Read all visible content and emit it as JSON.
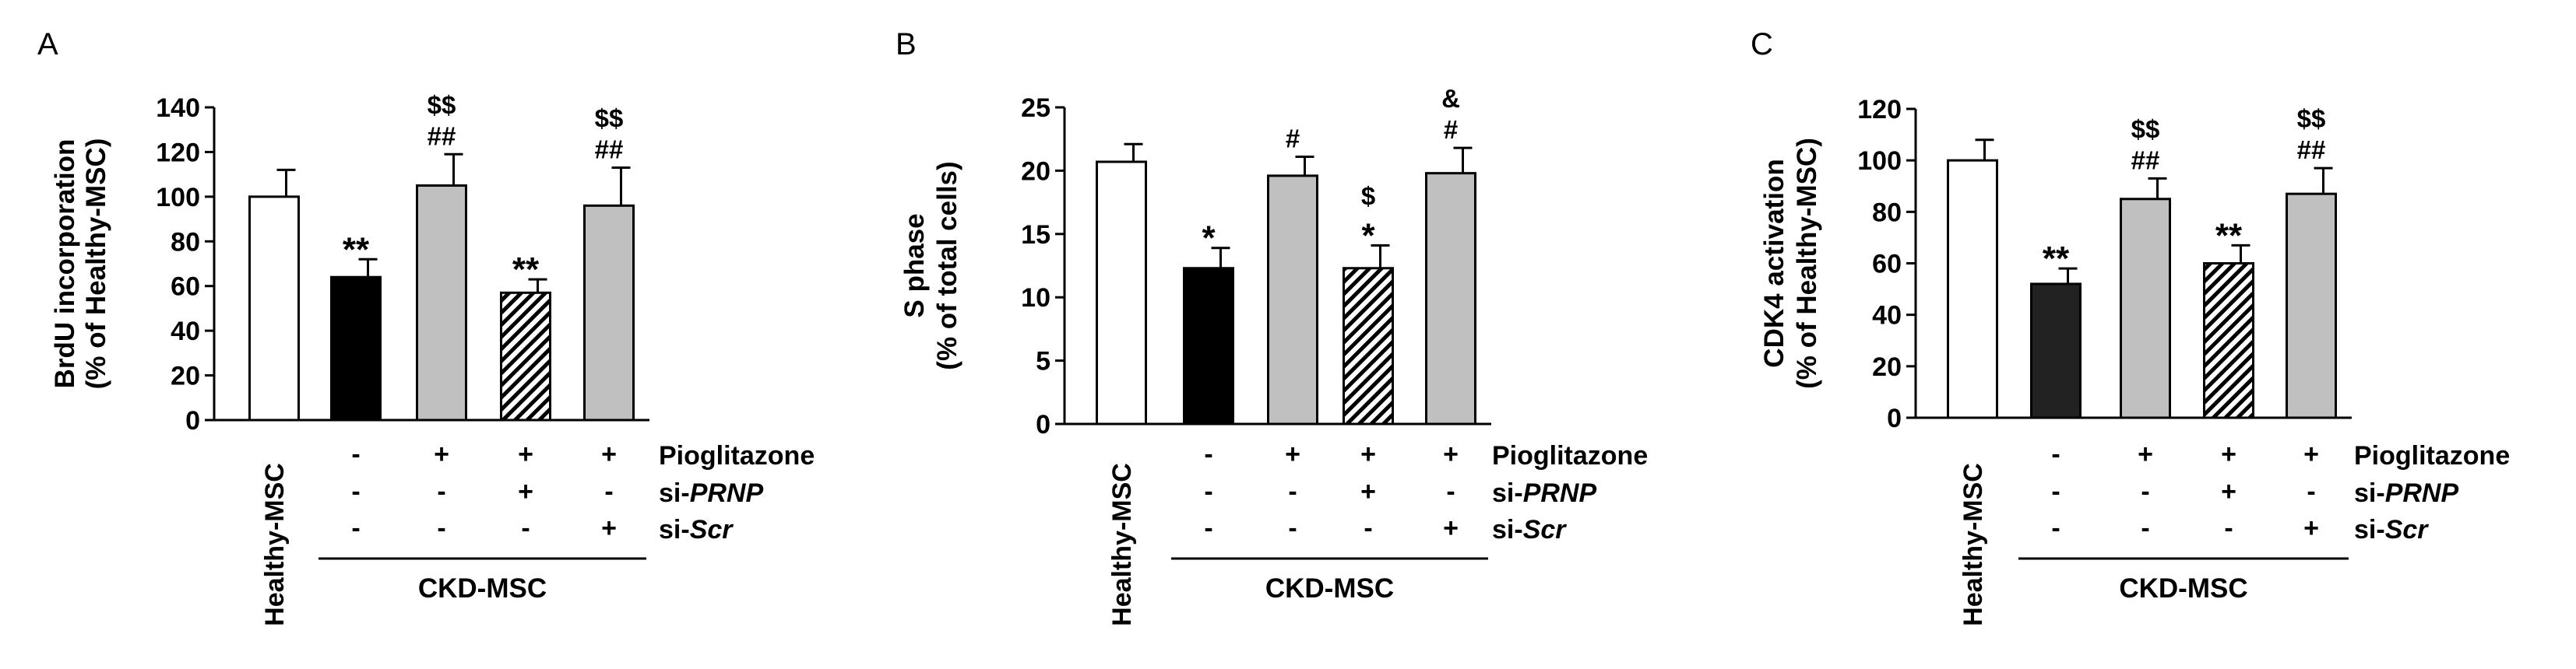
{
  "figure": {
    "row_labels": [
      "Pioglitazone",
      "si-",
      "si-"
    ],
    "row_label_italic": [
      "",
      "PRNP",
      "Scr"
    ],
    "group_label": "CKD-MSC",
    "first_category": "Healthy-MSC",
    "signs": [
      [
        "-",
        "+",
        "+",
        "+"
      ],
      [
        "-",
        "-",
        "+",
        "-"
      ],
      [
        "-",
        "-",
        "-",
        "+"
      ]
    ]
  },
  "chart_data": [
    {
      "type": "bar",
      "panel_label": "A",
      "ylabel": [
        "BrdU incorporation",
        "(% of Healthy-MSC)"
      ],
      "ylim": [
        0,
        140
      ],
      "yticks": [
        0,
        20,
        40,
        60,
        80,
        100,
        120,
        140
      ],
      "categories": [
        "Healthy-MSC",
        "CKD-MSC",
        "CKD-MSC + Pioglitazone",
        "CKD-MSC + Pioglitazone + si-PRNP",
        "CKD-MSC + Pioglitazone + si-Scr"
      ],
      "values": [
        100,
        64,
        105,
        57,
        96
      ],
      "errors": [
        12,
        8,
        14,
        6,
        17
      ],
      "annotations": [
        [
          ""
        ],
        [
          "**"
        ],
        [
          "$$",
          "##"
        ],
        [
          "**"
        ],
        [
          "$$",
          "##"
        ]
      ],
      "bar_fills": [
        "white",
        "black",
        "gray",
        "hatched",
        "gray"
      ]
    },
    {
      "type": "bar",
      "panel_label": "B",
      "ylabel": [
        "S phase",
        "(% of total cells)"
      ],
      "ylim": [
        0,
        25
      ],
      "yticks": [
        0,
        5,
        10,
        15,
        20,
        25
      ],
      "categories": [
        "Healthy-MSC",
        "CKD-MSC",
        "CKD-MSC + Pioglitazone",
        "CKD-MSC + Pioglitazone + si-PRNP",
        "CKD-MSC + Pioglitazone + si-Scr"
      ],
      "values": [
        20.7,
        12.3,
        19.6,
        12.3,
        19.8
      ],
      "errors": [
        1.4,
        1.6,
        1.5,
        1.8,
        2.0
      ],
      "annotations": [
        [
          ""
        ],
        [
          "*"
        ],
        [
          "#"
        ],
        [
          "$",
          "*"
        ],
        [
          "&",
          "#"
        ]
      ],
      "bar_fills": [
        "white",
        "black",
        "gray",
        "hatched",
        "gray"
      ]
    },
    {
      "type": "bar",
      "panel_label": "C",
      "ylabel": [
        "CDK4 activation",
        "(% of Healthy-MSC)"
      ],
      "ylim": [
        0,
        120
      ],
      "yticks": [
        0,
        20,
        40,
        60,
        80,
        100,
        120
      ],
      "categories": [
        "Healthy-MSC",
        "CKD-MSC",
        "CKD-MSC + Pioglitazone",
        "CKD-MSC + Pioglitazone + si-PRNP",
        "CKD-MSC + Pioglitazone + si-Scr"
      ],
      "values": [
        100,
        52,
        85,
        60,
        87
      ],
      "errors": [
        8,
        6,
        8,
        7,
        10
      ],
      "annotations": [
        [
          ""
        ],
        [
          "**"
        ],
        [
          "$$",
          "##"
        ],
        [
          "**"
        ],
        [
          "$$",
          "##"
        ]
      ],
      "bar_fills": [
        "white",
        "#222222",
        "gray",
        "hatched",
        "gray"
      ]
    }
  ]
}
